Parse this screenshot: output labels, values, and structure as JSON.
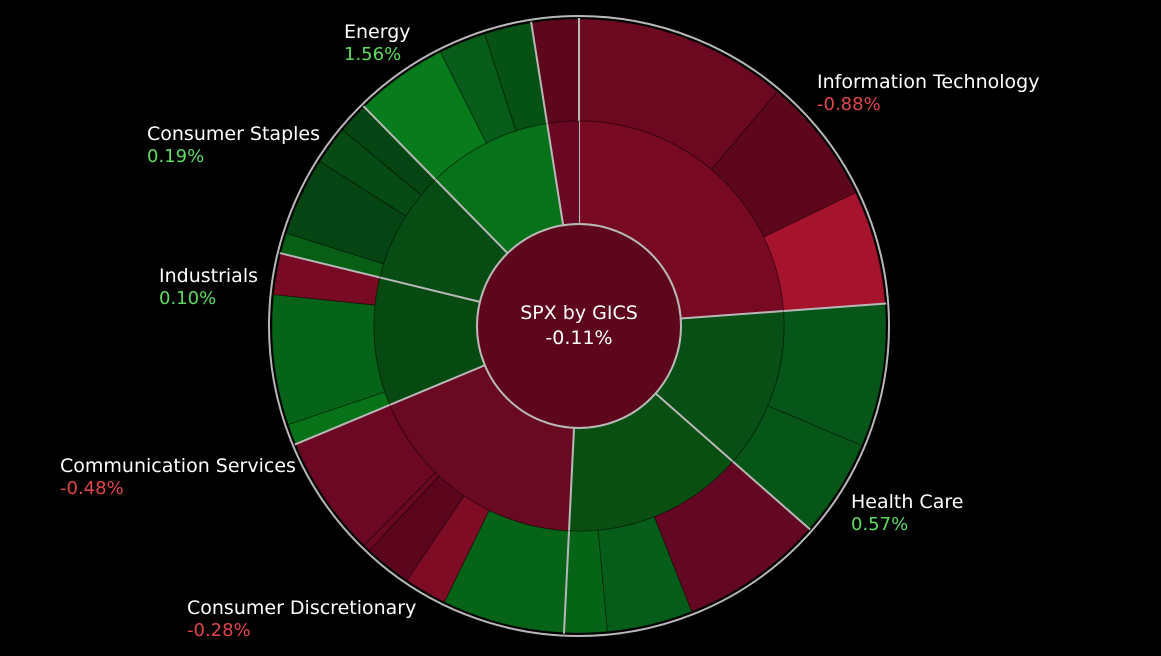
{
  "chart_data": {
    "type": "sunburst",
    "center": {
      "title": "SPX by GICS",
      "change": "-0.11%"
    },
    "colors": {
      "background": "#000000",
      "separator": "#b8b8b8",
      "positive_text": "#5fdc5f",
      "negative_text": "#e0474c"
    },
    "sectors": [
      {
        "name": "Information Technology",
        "change": "-0.88%",
        "color": "#770a22",
        "children": [
          {
            "weight": 14.4,
            "color": "#6c0820"
          },
          {
            "weight": 8.6,
            "color": "#5e061c"
          },
          {
            "weight": 7.7,
            "color": "#a5132d"
          }
        ]
      },
      {
        "name": "Health Care",
        "change": "0.57%",
        "color": "#074f14",
        "children": [
          {
            "weight": 9.7,
            "color": "#06561a"
          },
          {
            "weight": 6.6,
            "color": "#065618"
          }
        ]
      },
      {
        "name": "Consumer Discretionary",
        "change": "-0.28%",
        "color": "#0a4f12",
        "children": [
          {
            "weight": 9.7,
            "color": "#640722"
          },
          {
            "weight": 5.8,
            "color": "#065c19"
          },
          {
            "weight": 2.9,
            "color": "#066416"
          }
        ]
      },
      {
        "name": "Communication Services",
        "change": "-0.48%",
        "color": "#6a0922",
        "children": [
          {
            "weight": 8.3,
            "color": "#066418"
          },
          {
            "weight": 2.9,
            "color": "#7e0c24"
          },
          {
            "weight": 3.2,
            "color": "#5c061d"
          },
          {
            "weight": 0.5,
            "color": "#6a0821"
          },
          {
            "weight": 8.2,
            "color": "#6c0823"
          }
        ]
      },
      {
        "name": "Industrials",
        "change": "0.10%",
        "color": "#064a12",
        "children": [
          {
            "weight": 1.4,
            "color": "#087219"
          },
          {
            "weight": 8.8,
            "color": "#066418"
          },
          {
            "weight": 2.8,
            "color": "#780a24"
          }
        ]
      },
      {
        "name": "Consumer Staples",
        "change": "0.19%",
        "color": "#074d13",
        "children": [
          {
            "weight": 1.4,
            "color": "#075f16"
          },
          {
            "weight": 5.3,
            "color": "#054413"
          },
          {
            "weight": 2.6,
            "color": "#064a14"
          },
          {
            "weight": 2.1,
            "color": "#054413"
          }
        ]
      },
      {
        "name": "Energy",
        "change": "1.56%",
        "color": "#08721a",
        "children": [
          {
            "weight": 6.3,
            "color": "#087b1c"
          },
          {
            "weight": 3.2,
            "color": "#065c18"
          },
          {
            "weight": 3.2,
            "color": "#055214"
          }
        ]
      },
      {
        "name": "",
        "change": "",
        "color": "#6a0722",
        "children": [
          {
            "weight": 3.2,
            "color": "#5e061c"
          }
        ]
      }
    ]
  }
}
